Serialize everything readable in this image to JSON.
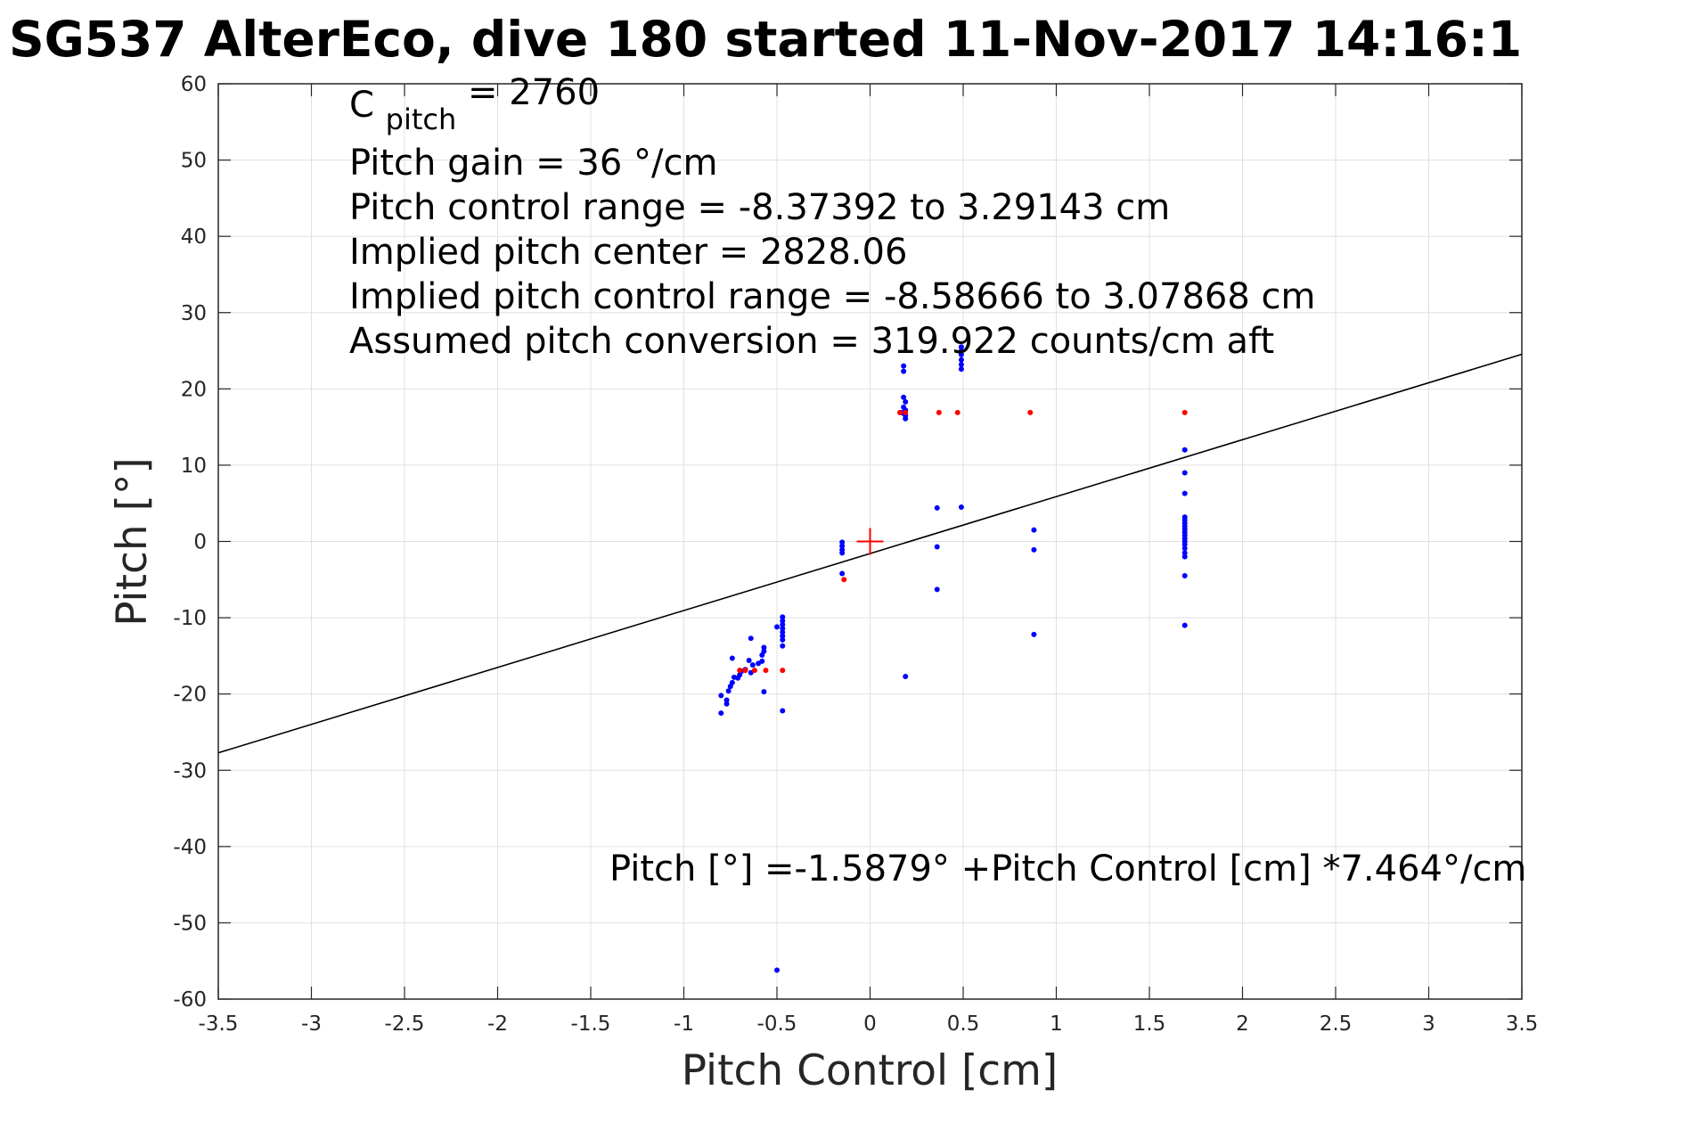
{
  "chart_data": {
    "type": "scatter",
    "title": "SG537 AlterEco, dive 180 started 11-Nov-2017 14:16:1",
    "xlabel": "Pitch Control [cm]",
    "ylabel": "Pitch [°]",
    "xlim": [
      -3.5,
      3.5
    ],
    "ylim": [
      -60,
      60
    ],
    "xticks": [
      -3.5,
      -3,
      -2.5,
      -2,
      -1.5,
      -1,
      -0.5,
      0,
      0.5,
      1,
      1.5,
      2,
      2.5,
      3,
      3.5
    ],
    "xtick_labels": [
      "-3.5",
      "-3",
      "-2.5",
      "-2",
      "-1.5",
      "-1",
      "-0.5",
      "0",
      "0.5",
      "1",
      "1.5",
      "2",
      "2.5",
      "3",
      "3.5"
    ],
    "yticks": [
      60,
      50,
      40,
      30,
      20,
      10,
      0,
      -10,
      -20,
      -30,
      -40,
      -50,
      -60
    ],
    "ytick_labels": [
      "60",
      "50",
      "40",
      "30",
      "20",
      "10",
      "0",
      "-10",
      "-20",
      "-30",
      "-40",
      "-50",
      "-60"
    ],
    "grid": true,
    "colors": {
      "used": "#0000ff",
      "rejected": "#ff0000",
      "fit_line": "#000000",
      "center_marker": "#ff0000",
      "grid": "#e0e0e0",
      "axes": "#262626"
    },
    "fit_line": {
      "intercept": -1.5879,
      "slope": 7.464
    },
    "center_marker": {
      "x": 0,
      "y": 0
    },
    "annotations": {
      "c_pitch": {
        "main": "C",
        "sub": "pitch",
        "rest": " = 2760"
      },
      "lines": [
        "Pitch gain = 36 °/cm",
        "Pitch control range = -8.37392 to 3.29143 cm",
        "Implied pitch center = 2828.06",
        "Implied pitch control range = -8.58666 to 3.07868 cm",
        "Assumed pitch conversion = 319.922 counts/cm aft"
      ],
      "fit_equation": "Pitch [°] =-1.5879° +Pitch Control [cm] *7.464°/cm"
    },
    "series": [
      {
        "color": "#0000ff",
        "points": [
          [
            -0.8,
            -22.5
          ],
          [
            -0.8,
            -20.2
          ],
          [
            -0.77,
            -21.3
          ],
          [
            -0.77,
            -20.8
          ],
          [
            -0.76,
            -19.6
          ],
          [
            -0.75,
            -19.0
          ],
          [
            -0.74,
            -18.5
          ],
          [
            -0.74,
            -15.3
          ],
          [
            -0.73,
            -17.8
          ],
          [
            -0.71,
            -17.9
          ],
          [
            -0.7,
            -17.5
          ],
          [
            -0.69,
            -17.0
          ],
          [
            -0.67,
            -16.8
          ],
          [
            -0.65,
            -15.6
          ],
          [
            -0.64,
            -17.2
          ],
          [
            -0.64,
            -12.7
          ],
          [
            -0.63,
            -16.2
          ],
          [
            -0.6,
            -16.0
          ],
          [
            -0.58,
            -15.7
          ],
          [
            -0.58,
            -14.9
          ],
          [
            -0.57,
            -14.4
          ],
          [
            -0.57,
            -13.9
          ],
          [
            -0.57,
            -19.7
          ],
          [
            -0.5,
            -11.2
          ],
          [
            -0.47,
            -9.9
          ],
          [
            -0.47,
            -10.4
          ],
          [
            -0.47,
            -10.9
          ],
          [
            -0.47,
            -11.4
          ],
          [
            -0.47,
            -11.9
          ],
          [
            -0.47,
            -12.4
          ],
          [
            -0.47,
            -12.9
          ],
          [
            -0.47,
            -13.7
          ],
          [
            -0.47,
            -22.2
          ],
          [
            -0.5,
            -56.2
          ],
          [
            -0.15,
            -0.1
          ],
          [
            -0.15,
            -0.6
          ],
          [
            -0.15,
            -1.1
          ],
          [
            -0.15,
            -1.5
          ],
          [
            -0.15,
            -4.2
          ],
          [
            0.18,
            23.0
          ],
          [
            0.18,
            22.3
          ],
          [
            0.18,
            18.9
          ],
          [
            0.19,
            18.3
          ],
          [
            0.18,
            17.6
          ],
          [
            0.19,
            17.2
          ],
          [
            0.18,
            16.8
          ],
          [
            0.19,
            16.5
          ],
          [
            0.19,
            16.1
          ],
          [
            0.17,
            16.9
          ],
          [
            0.19,
            -17.7
          ],
          [
            0.36,
            4.4
          ],
          [
            0.36,
            -0.7
          ],
          [
            0.36,
            -6.3
          ],
          [
            0.49,
            25.5
          ],
          [
            0.49,
            25.0
          ],
          [
            0.49,
            24.5
          ],
          [
            0.49,
            23.8
          ],
          [
            0.49,
            23.2
          ],
          [
            0.49,
            22.6
          ],
          [
            0.49,
            4.5
          ],
          [
            0.88,
            1.5
          ],
          [
            0.88,
            -1.1
          ],
          [
            0.88,
            -12.2
          ],
          [
            1.69,
            12.0
          ],
          [
            1.69,
            9.0
          ],
          [
            1.69,
            6.3
          ],
          [
            1.69,
            3.2
          ],
          [
            1.69,
            2.8
          ],
          [
            1.69,
            2.4
          ],
          [
            1.69,
            2.0
          ],
          [
            1.69,
            1.6
          ],
          [
            1.69,
            1.2
          ],
          [
            1.69,
            0.8
          ],
          [
            1.69,
            0.4
          ],
          [
            1.69,
            0.0
          ],
          [
            1.69,
            -0.4
          ],
          [
            1.69,
            -0.9
          ],
          [
            1.69,
            -1.5
          ],
          [
            1.69,
            -2.0
          ],
          [
            1.69,
            -4.5
          ],
          [
            1.69,
            -11.0
          ]
        ]
      },
      {
        "color": "#ff0000",
        "points": [
          [
            -0.7,
            -16.9
          ],
          [
            -0.67,
            -16.9
          ],
          [
            -0.62,
            -16.9
          ],
          [
            -0.56,
            -16.9
          ],
          [
            -0.47,
            -16.9
          ],
          [
            -0.14,
            -5.0
          ],
          [
            0.16,
            16.9
          ],
          [
            0.19,
            16.9
          ],
          [
            0.37,
            16.9
          ],
          [
            0.47,
            16.9
          ],
          [
            0.86,
            16.9
          ],
          [
            1.69,
            16.9
          ]
        ]
      }
    ]
  }
}
